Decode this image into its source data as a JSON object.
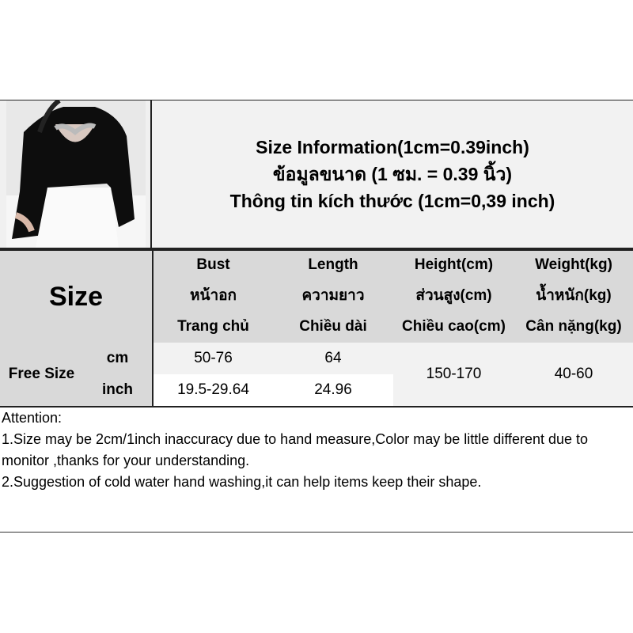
{
  "title_lines": [
    "Size Information(1cm=0.39inch)",
    "ข้อมูลขนาด (1 ซม. = 0.39 นิ้ว)",
    "Thông tin kích thước (1cm=0,39 inch)"
  ],
  "table": {
    "size_label": "Size",
    "columns": [
      {
        "en": "Bust",
        "th": "หน้าอก",
        "vi": "Trang chủ"
      },
      {
        "en": "Length",
        "th": "ความยาว",
        "vi": "Chiều dài"
      },
      {
        "en": "Height(cm)",
        "th": "ส่วนสูง(cm)",
        "vi": "Chiều cao(cm)"
      },
      {
        "en": "Weight(kg)",
        "th": "น้ำหนัก(kg)",
        "vi": "Cân nặng(kg)"
      }
    ],
    "row_label": "Free Size",
    "unit_cm": "cm",
    "unit_inch": "inch",
    "bust_cm": "50-76",
    "length_cm": "64",
    "bust_inch": "19.5-29.64",
    "length_inch": "24.96",
    "height": "150-170",
    "weight": "40-60"
  },
  "notes": {
    "heading": "Attention:",
    "line1": "1.Size may be 2cm/1inch inaccuracy due to hand measure,Color may be little different due to monitor ,thanks for your understanding.",
    "line2": "2.Suggestion of cold water hand washing,it can help items keep their shape."
  },
  "colors": {
    "header": "#d9d9d9",
    "light": "#f2f2f2",
    "border": "#222222"
  }
}
